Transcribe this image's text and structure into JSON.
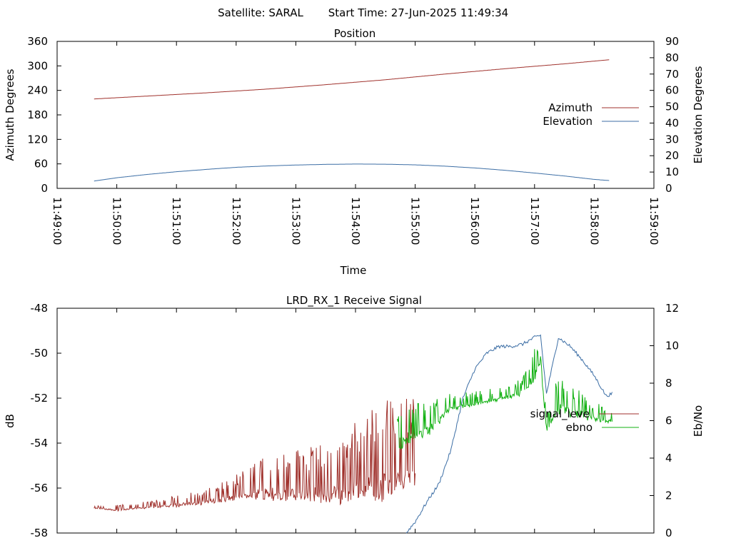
{
  "header": {
    "satellite_label": "Satellite: SARAL",
    "start_time_label": "Start Time: 27-Jun-2025 11:49:34"
  },
  "chart_data": [
    {
      "type": "line",
      "title": "Position",
      "xlabel": "Time",
      "ylabel": "Azimuth Degrees",
      "y2label": "Elevation Degrees",
      "x_ticks": [
        "11:49:00",
        "11:50:00",
        "11:51:00",
        "11:52:00",
        "11:53:00",
        "11:54:00",
        "11:55:00",
        "11:56:00",
        "11:57:00",
        "11:58:00",
        "11:59:00"
      ],
      "xlim_minutes": [
        0,
        10
      ],
      "ylim": [
        0,
        360
      ],
      "y_ticks": [
        "0",
        "60",
        "120",
        "180",
        "240",
        "300",
        "360"
      ],
      "y2lim": [
        0,
        90
      ],
      "y2_ticks": [
        "0",
        "10",
        "20",
        "30",
        "40",
        "50",
        "60",
        "70",
        "80",
        "90"
      ],
      "legend_position": "right",
      "series": [
        {
          "name": "Azimuth",
          "axis": "left",
          "color": "#a0322d",
          "x": [
            0.62,
            1.5,
            2.5,
            3.5,
            4.5,
            5.5,
            6.5,
            7.5,
            8.5,
            9.25
          ],
          "y": [
            219,
            226,
            234,
            243,
            254,
            266,
            280,
            293,
            305,
            315
          ]
        },
        {
          "name": "Elevation",
          "axis": "right",
          "color": "#3c6ea5",
          "x": [
            0.62,
            1.0,
            1.5,
            2.0,
            2.5,
            3.0,
            3.5,
            4.0,
            4.5,
            5.0,
            5.5,
            6.0,
            6.5,
            7.0,
            7.5,
            8.0,
            8.5,
            9.0,
            9.25
          ],
          "y": [
            4.5,
            6.5,
            8.5,
            10.2,
            11.6,
            12.9,
            13.7,
            14.3,
            14.7,
            14.9,
            14.8,
            14.4,
            13.6,
            12.5,
            11.1,
            9.4,
            7.6,
            5.5,
            4.8
          ]
        }
      ]
    },
    {
      "type": "line",
      "title": "LRD_RX_1 Receive Signal",
      "xlabel": "",
      "ylabel": "dB",
      "y2label": "Eb/No",
      "xlim_minutes": [
        0,
        10
      ],
      "ylim": [
        -58,
        -48
      ],
      "y_ticks": [
        "-48",
        "-50",
        "-52",
        "-54",
        "-56",
        "-58"
      ],
      "y2lim": [
        0,
        12
      ],
      "y2_ticks": [
        "12",
        "10",
        "8",
        "6",
        "4",
        "2",
        "0"
      ],
      "legend_position": "right",
      "series": [
        {
          "name": "signal_leve",
          "axis": "left",
          "color": "#a0322d",
          "kind": "noisy",
          "x": [
            0.62,
            1.0,
            1.5,
            2.0,
            2.5,
            3.0,
            3.5,
            4.0,
            4.5,
            5.0,
            5.5,
            6.0
          ],
          "y_base": [
            -56.9,
            -57.0,
            -56.9,
            -56.8,
            -56.7,
            -56.5,
            -56.4,
            -56.5,
            -56.5,
            -56.4,
            -56.3,
            -55.8
          ],
          "y_peak": [
            -56.8,
            -56.7,
            -56.6,
            -56.3,
            -56.0,
            -55.4,
            -54.5,
            -54.3,
            -54.0,
            -53.0,
            -52.0,
            -52.0
          ]
        },
        {
          "name": "",
          "axis": "left",
          "color": "#3c6ea5",
          "kind": "smooth",
          "x": [
            5.85,
            6.0,
            6.2,
            6.4,
            6.6,
            6.8,
            7.0,
            7.2,
            7.4,
            7.6,
            7.8,
            8.0,
            8.1,
            8.2,
            8.4,
            8.6,
            8.8,
            9.0,
            9.2,
            9.3
          ],
          "y": [
            -58.0,
            -57.5,
            -56.6,
            -55.8,
            -54.3,
            -52.0,
            -50.7,
            -50.0,
            -49.7,
            -49.7,
            -49.6,
            -49.3,
            -49.2,
            -51.8,
            -49.3,
            -49.7,
            -50.3,
            -51.0,
            -51.9,
            -51.8
          ]
        },
        {
          "name": "ebno",
          "axis": "right",
          "color": "#10b010",
          "kind": "noisy",
          "x": [
            5.7,
            6.0,
            6.3,
            6.6,
            7.0,
            7.4,
            7.8,
            8.0,
            8.1,
            8.2,
            8.4,
            8.6,
            8.8,
            9.0,
            9.3
          ],
          "y_base": [
            4.5,
            5.0,
            5.5,
            6.6,
            6.8,
            7.1,
            7.4,
            8.2,
            9.0,
            5.5,
            6.5,
            6.3,
            6.2,
            6.0,
            5.9
          ],
          "y_peak": [
            6.8,
            6.9,
            7.2,
            7.5,
            7.6,
            7.8,
            8.3,
            10.2,
            9.5,
            6.5,
            8.5,
            8.0,
            7.5,
            7.0,
            6.6
          ]
        }
      ]
    }
  ]
}
